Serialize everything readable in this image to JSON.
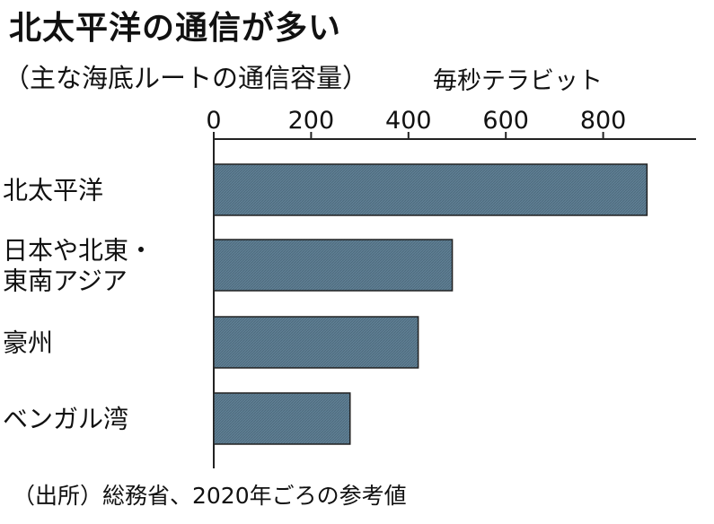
{
  "title": "北太平洋の通信が多い",
  "subtitle": "（主な海底ルートの通信容量）",
  "unit_label": "毎秒テラビット",
  "source": "（出所）総務省、2020年ごろの参考値",
  "colors": {
    "bar_fill": "#5f7f94",
    "bar_stroke": "#222222",
    "axis": "#222222"
  },
  "chart_data": {
    "type": "bar",
    "orientation": "horizontal",
    "title": "北太平洋の通信が多い",
    "subtitle": "（主な海底ルートの通信容量）",
    "xlabel": "毎秒テラビット",
    "ylabel": "",
    "categories": [
      [
        "北太平洋"
      ],
      [
        "日本や北東・",
        "東南アジア"
      ],
      [
        "豪州"
      ],
      [
        "ベンガル湾"
      ]
    ],
    "values": [
      890,
      490,
      420,
      280
    ],
    "xlim": [
      0,
      900
    ],
    "ticks": [
      0,
      200,
      400,
      600,
      800
    ],
    "tick_labels": [
      "0",
      "200",
      "400",
      "600",
      "800"
    ],
    "grid": false,
    "legend": "none"
  }
}
